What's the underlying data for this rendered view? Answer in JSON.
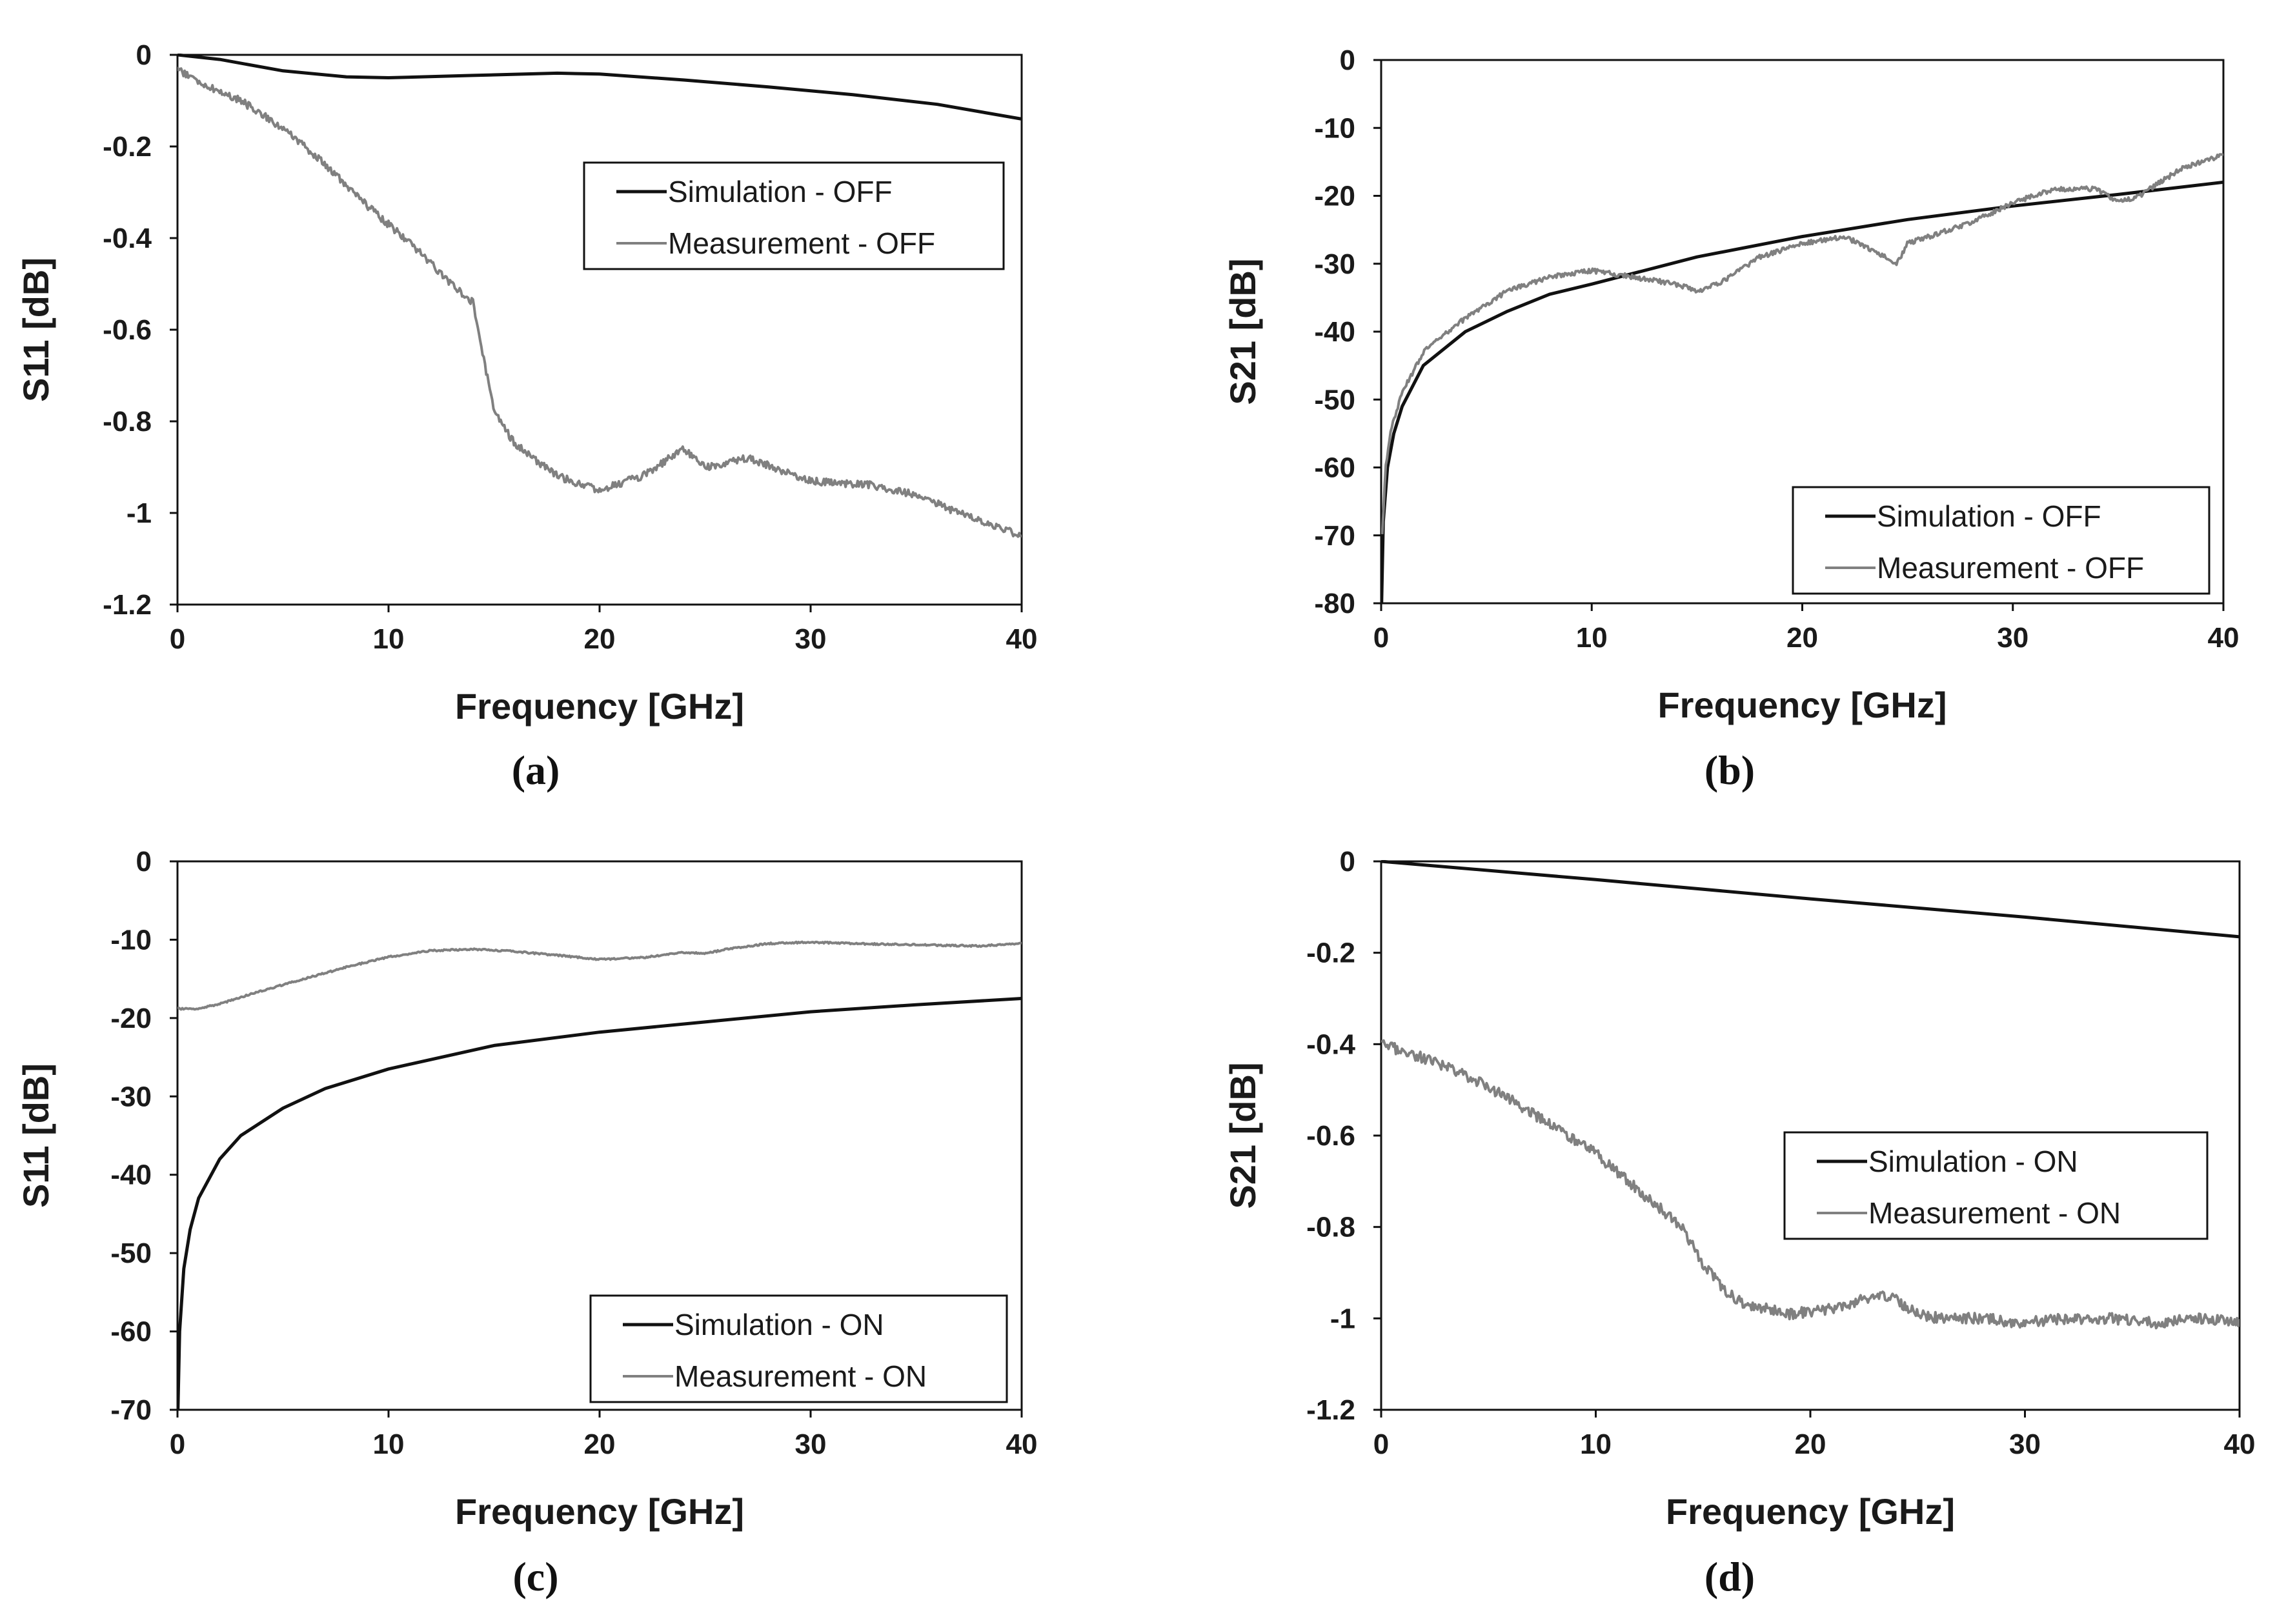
{
  "figure": {
    "colors": {
      "simulation": "#111111",
      "measurement": "#808080",
      "frame": "#111111",
      "background": "#ffffff"
    }
  },
  "chart_data": [
    {
      "panel": "(a)",
      "type": "line",
      "xlabel": "Frequency [GHz]",
      "ylabel": "S11 [dB]",
      "xlim": [
        0,
        40
      ],
      "ylim": [
        -1.2,
        0
      ],
      "xticks": [
        0,
        10,
        20,
        30,
        40
      ],
      "yticks": [
        0,
        -0.2,
        -0.4,
        -0.6,
        -0.8,
        -1,
        -1.2
      ],
      "grid": false,
      "legend_position": "upper-right",
      "series": [
        {
          "name": "Simulation - OFF",
          "style": "simulation",
          "x": [
            0,
            2,
            5,
            8,
            10,
            14,
            18,
            20,
            24,
            28,
            32,
            36,
            40
          ],
          "y": [
            0,
            -0.01,
            -0.035,
            -0.048,
            -0.05,
            -0.045,
            -0.04,
            -0.042,
            -0.055,
            -0.07,
            -0.087,
            -0.108,
            -0.14
          ]
        },
        {
          "name": "Measurement - OFF",
          "style": "measurement",
          "noise": 0.008,
          "x": [
            0,
            1,
            3,
            5,
            7,
            9,
            11,
            13,
            14,
            14.5,
            15,
            16,
            18,
            20,
            22,
            24,
            25,
            27,
            30,
            33,
            35,
            37,
            40
          ],
          "y": [
            -0.03,
            -0.06,
            -0.1,
            -0.16,
            -0.24,
            -0.33,
            -0.41,
            -0.5,
            -0.54,
            -0.66,
            -0.78,
            -0.85,
            -0.92,
            -0.95,
            -0.92,
            -0.86,
            -0.9,
            -0.88,
            -0.93,
            -0.94,
            -0.96,
            -1.0,
            -1.05
          ]
        }
      ]
    },
    {
      "panel": "(b)",
      "type": "line",
      "xlabel": "Frequency [GHz]",
      "ylabel": "S21 [dB]",
      "xlim": [
        0,
        40
      ],
      "ylim": [
        -80,
        0
      ],
      "xticks": [
        0,
        10,
        20,
        30,
        40
      ],
      "yticks": [
        0,
        -10,
        -20,
        -30,
        -40,
        -50,
        -60,
        -70,
        -80
      ],
      "grid": false,
      "legend_position": "lower-right",
      "series": [
        {
          "name": "Simulation - OFF",
          "style": "simulation",
          "x": [
            0.02,
            0.1,
            0.3,
            0.6,
            1,
            2,
            4,
            6,
            8,
            10,
            15,
            20,
            25,
            30,
            35,
            40
          ],
          "y": [
            -80,
            -68,
            -60,
            -55,
            -51,
            -45,
            -40,
            -37,
            -34.5,
            -33,
            -29,
            -26,
            -23.5,
            -21.5,
            -19.8,
            -18
          ]
        },
        {
          "name": "Measurement - OFF",
          "style": "measurement",
          "noise": 0.35,
          "x": [
            0.05,
            0.2,
            0.5,
            1,
            2,
            4,
            6,
            8,
            10,
            12,
            14,
            15,
            16,
            18,
            20,
            22,
            24,
            24.5,
            25,
            26,
            28,
            30,
            32,
            34,
            35,
            36,
            38,
            40
          ],
          "y": [
            -70,
            -60,
            -54,
            -49,
            -43,
            -38,
            -34,
            -32,
            -31,
            -32,
            -33,
            -34,
            -33,
            -29,
            -27,
            -26,
            -29,
            -30,
            -27,
            -26,
            -24,
            -21,
            -19,
            -19,
            -21,
            -20,
            -16,
            -14
          ]
        }
      ]
    },
    {
      "panel": "(c)",
      "type": "line",
      "xlabel": "Frequency [GHz]",
      "ylabel": "S11 [dB]",
      "xlim": [
        0,
        40
      ],
      "ylim": [
        -70,
        0
      ],
      "xticks": [
        0,
        10,
        20,
        30,
        40
      ],
      "yticks": [
        0,
        -10,
        -20,
        -30,
        -40,
        -50,
        -60,
        -70
      ],
      "grid": false,
      "legend_position": "lower-right",
      "series": [
        {
          "name": "Simulation - ON",
          "style": "simulation",
          "x": [
            0.02,
            0.1,
            0.3,
            0.6,
            1,
            2,
            3,
            5,
            7,
            10,
            15,
            20,
            25,
            30,
            35,
            40
          ],
          "y": [
            -70,
            -60,
            -52,
            -47,
            -43,
            -38,
            -35,
            -31.5,
            -29,
            -26.5,
            -23.5,
            -21.8,
            -20.5,
            -19.2,
            -18.3,
            -17.5
          ]
        },
        {
          "name": "Measurement - ON",
          "style": "measurement",
          "noise": 0.1,
          "x": [
            0,
            1,
            2,
            4,
            6,
            8,
            10,
            12,
            14,
            16,
            18,
            20,
            22,
            24,
            25,
            26,
            28,
            30,
            32,
            34,
            36,
            38,
            40
          ],
          "y": [
            -18.8,
            -18.8,
            -18.2,
            -16.5,
            -15,
            -13.5,
            -12.2,
            -11.4,
            -11.2,
            -11.5,
            -12,
            -12.5,
            -12.3,
            -11.6,
            -11.8,
            -11.2,
            -10.5,
            -10.3,
            -10.5,
            -10.6,
            -10.7,
            -10.8,
            -10.5
          ]
        }
      ]
    },
    {
      "panel": "(d)",
      "type": "line",
      "xlabel": "Frequency [GHz]",
      "ylabel": "S21 [dB]",
      "xlim": [
        0,
        40
      ],
      "ylim": [
        -1.2,
        0
      ],
      "xticks": [
        0,
        10,
        20,
        30,
        40
      ],
      "yticks": [
        0,
        -0.2,
        -0.4,
        -0.6,
        -0.8,
        -1,
        -1.2
      ],
      "grid": false,
      "legend_position": "center-right",
      "series": [
        {
          "name": "Simulation - ON",
          "style": "simulation",
          "x": [
            0,
            10,
            20,
            30,
            40
          ],
          "y": [
            0,
            -0.04,
            -0.082,
            -0.122,
            -0.165
          ]
        },
        {
          "name": "Measurement - ON",
          "style": "measurement",
          "noise": 0.012,
          "x": [
            0,
            2,
            4,
            6,
            8,
            10,
            12,
            14,
            15,
            16,
            17,
            19,
            21,
            23,
            24,
            25,
            26,
            28,
            30,
            32,
            34,
            36,
            38,
            40
          ],
          "y": [
            -0.4,
            -0.43,
            -0.47,
            -0.52,
            -0.58,
            -0.64,
            -0.72,
            -0.8,
            -0.88,
            -0.94,
            -0.97,
            -0.99,
            -0.98,
            -0.95,
            -0.96,
            -0.99,
            -1.0,
            -1.0,
            -1.01,
            -1.0,
            -1.0,
            -1.01,
            -1.0,
            -1.01
          ]
        }
      ]
    }
  ]
}
